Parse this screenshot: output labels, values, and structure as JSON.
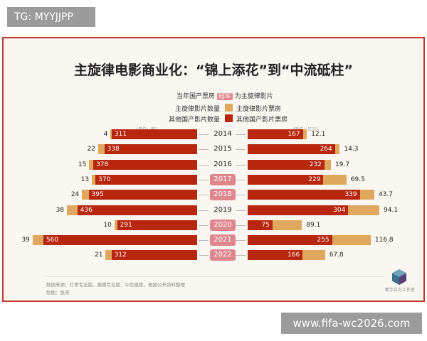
{
  "tag": "TG: MYYJJPP",
  "watermark": "www.fifa-wc2026.com",
  "chart_data": {
    "type": "bar",
    "title": "主旋律电影商业化：“锦上添花”到“中流砥柱”",
    "highlight_note": {
      "before": "当年国产票房",
      "badge": "冠军",
      "after": "为主旋律影片"
    },
    "legend": {
      "main_count": "主旋律影片数量",
      "other_count": "其他国产影片数量",
      "main_box": "主旋律影片票房",
      "other_box": "其他国产影片票房"
    },
    "left_unit": "（单位：部）",
    "right_unit": "（单位：亿元）",
    "colors": {
      "main": "#dfa85e",
      "other": "#b8260e",
      "highlight": "#e0868e"
    },
    "categories": [
      "2014",
      "2015",
      "2016",
      "2017",
      "2018",
      "2019",
      "2020",
      "2021",
      "2022"
    ],
    "champion_is_main": [
      false,
      false,
      false,
      true,
      true,
      false,
      true,
      true,
      true
    ],
    "left_series": [
      {
        "name": "主旋律影片数量",
        "values": [
          4,
          22,
          15,
          13,
          24,
          38,
          10,
          39,
          21
        ]
      },
      {
        "name": "其他国产影片数量",
        "values": [
          311,
          338,
          378,
          370,
          395,
          436,
          291,
          560,
          312
        ]
      }
    ],
    "right_series": [
      {
        "name": "其他国产影片票房",
        "values": [
          167,
          264,
          232,
          229,
          339,
          304,
          75,
          255,
          166
        ]
      },
      {
        "name": "主旋律影片票房",
        "values": [
          12.1,
          14.3,
          19.7,
          69.5,
          43.7,
          94.1,
          89.1,
          116.8,
          67.8
        ]
      }
    ]
  },
  "footer": {
    "source": "数据来源：灯塔专业版、猫眼专业版、中信建投，根据公开资料整理",
    "author": "制图：张尧",
    "brand": "新宇立方工作室"
  }
}
